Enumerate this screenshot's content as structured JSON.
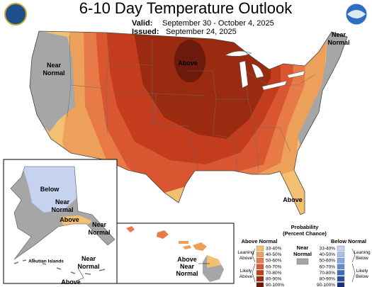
{
  "header": {
    "title": "6-10 Day Temperature Outlook",
    "valid_label": "Valid:",
    "valid": "September 30 - October 4, 2025",
    "issued_label": "Issued:",
    "issued": "September 24, 2025"
  },
  "map_labels": {
    "west": [
      "Near",
      "Normal"
    ],
    "midwest": [
      "Above"
    ],
    "northeast": [
      "Near",
      "Normal"
    ],
    "florida": [
      "Above"
    ],
    "alaska_north": [
      "Below"
    ],
    "alaska_central": [
      "Near",
      "Normal"
    ],
    "alaska_south": [
      "Above"
    ],
    "alaska_southeast": [
      "Near",
      "Normal"
    ],
    "aleutian_title": "Aleutian Islands",
    "aleutian_near": [
      "Near",
      "Normal"
    ],
    "aleutian_above": [
      "Above"
    ],
    "hawaii": [
      "Above",
      "Near",
      "Normal"
    ]
  },
  "legend": {
    "title": [
      "Probability",
      "(Percent Chance)"
    ],
    "above_normal": {
      "title": "Above Normal",
      "levels": [
        "33-40%",
        "40-50%",
        "50-60%",
        "60-70%",
        "70-80%",
        "80-90%",
        "90-100%"
      ],
      "colors": [
        "#f2c070",
        "#eda05a",
        "#e87a48",
        "#da5630",
        "#c23c1d",
        "#9b2b10",
        "#6b1a0b"
      ],
      "leaning": [
        "Leaning",
        "Above"
      ],
      "likely": [
        "Likely",
        "Above"
      ]
    },
    "near_normal": {
      "title": [
        "Near",
        "Normal"
      ],
      "color": "#a6a6a6"
    },
    "below_normal": {
      "title": "Below Normal",
      "levels": [
        "33-40%",
        "40-50%",
        "50-60%",
        "60-70%",
        "70-80%",
        "80-90%",
        "90-100%"
      ],
      "colors": [
        "#c5d3ee",
        "#a8bfe6",
        "#86a8dc",
        "#5f8ed0",
        "#3b6dbd",
        "#2a4c9c",
        "#1c2e78"
      ],
      "leaning": [
        "Leaning",
        "Below"
      ],
      "likely": [
        "Likely",
        "Below"
      ]
    }
  }
}
